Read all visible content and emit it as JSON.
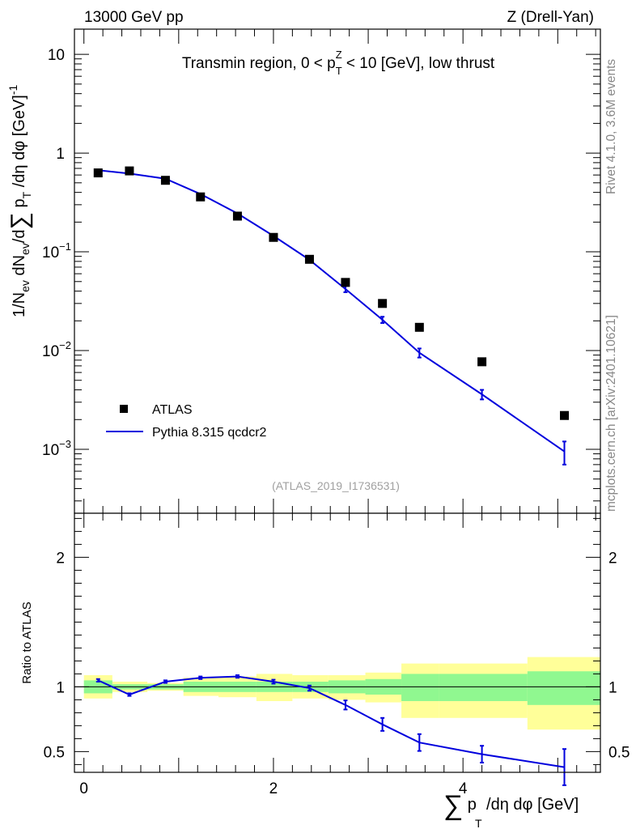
{
  "header": {
    "left": "13000 GeV pp",
    "right": "Z (Drell-Yan)"
  },
  "side_labels": {
    "rivet": "Rivet 4.1.0,  3.6M events",
    "site": "mcplots.cern.ch [arXiv:2401.10621]"
  },
  "colors": {
    "mc_line": "#0000dd",
    "data_marker": "#000000",
    "band_stat": "#90f890",
    "band_total": "#ffff99"
  },
  "chart_data": [
    {
      "type": "scatter",
      "panel": "main",
      "title": "Transmin region, 0 < p_T^Z < 10 [GeV], low thrust",
      "title_parts": {
        "prefix": "Transmin region, 0 < p",
        "sup": "Z",
        "sub": "T",
        "suffix": " < 10 [GeV], low thrust"
      },
      "yscale": "log",
      "xlim": [
        -0.1,
        5.45
      ],
      "ylim": [
        0.000225,
        18
      ],
      "ylabel": "1/N_ev dN_ev/d∑ p_T /dη dφ  [GeV]^-1",
      "y_tick_labels": [
        {
          "value": 10,
          "mantissa": "10",
          "exp": ""
        },
        {
          "value": 1,
          "mantissa": "1",
          "exp": ""
        },
        {
          "value": 0.1,
          "mantissa": "10",
          "exp": "−1"
        },
        {
          "value": 0.01,
          "mantissa": "10",
          "exp": "−2"
        },
        {
          "value": 0.001,
          "mantissa": "10",
          "exp": "−3"
        }
      ],
      "watermark": "(ATLAS_2019_I1736531)",
      "legend": {
        "position": "lower-left",
        "entries": [
          {
            "label": "ATLAS",
            "style": "marker"
          },
          {
            "label": "Pythia 8.315 qcdcr2",
            "style": "line"
          }
        ]
      },
      "series": [
        {
          "name": "ATLAS",
          "style": "marker",
          "x": [
            0.15,
            0.48,
            0.86,
            1.23,
            1.62,
            2.0,
            2.38,
            2.76,
            3.15,
            3.54,
            4.2,
            5.07
          ],
          "y": [
            0.63,
            0.66,
            0.53,
            0.36,
            0.23,
            0.14,
            0.084,
            0.049,
            0.03,
            0.0172,
            0.0077,
            0.0022
          ]
        },
        {
          "name": "Pythia 8.315 qcdcr2",
          "style": "line",
          "x": [
            0.15,
            0.48,
            0.86,
            1.23,
            1.62,
            2.0,
            2.38,
            2.76,
            3.15,
            3.54,
            4.2,
            5.07
          ],
          "y": [
            0.67,
            0.62,
            0.55,
            0.385,
            0.245,
            0.145,
            0.083,
            0.042,
            0.0205,
            0.0095,
            0.0036,
            0.00095
          ],
          "yerr": [
            0,
            0,
            0,
            0,
            0,
            0,
            0,
            0.003,
            0.0015,
            0.001,
            0.0004,
            0.00025
          ]
        }
      ]
    },
    {
      "type": "line",
      "panel": "ratio",
      "ylabel": "Ratio to ATLAS",
      "xlabel": "∑ p_T /dη dφ [GeV]",
      "xlim": [
        -0.1,
        5.45
      ],
      "ylim": [
        0.34,
        2.34
      ],
      "x_ticks": [
        0,
        2,
        4
      ],
      "y_ticks": [
        0.5,
        1,
        2
      ],
      "reference": 1,
      "bands": {
        "edges": [
          0.0,
          0.3,
          0.67,
          1.05,
          1.42,
          1.82,
          2.2,
          2.58,
          2.97,
          3.35,
          3.75,
          4.68,
          5.45
        ],
        "total_low": [
          0.91,
          0.96,
          0.97,
          0.93,
          0.92,
          0.89,
          0.91,
          0.9,
          0.88,
          0.76,
          0.76,
          0.67
        ],
        "total_high": [
          1.09,
          1.04,
          1.03,
          1.07,
          1.08,
          1.1,
          1.09,
          1.09,
          1.11,
          1.18,
          1.18,
          1.23
        ],
        "stat_low": [
          0.95,
          0.98,
          0.98,
          0.96,
          0.96,
          0.96,
          0.96,
          0.95,
          0.94,
          0.89,
          0.89,
          0.86
        ],
        "stat_high": [
          1.05,
          1.02,
          1.02,
          1.04,
          1.04,
          1.04,
          1.04,
          1.05,
          1.06,
          1.1,
          1.1,
          1.12
        ]
      },
      "series": [
        {
          "name": "Pythia 8.315 qcdcr2",
          "x": [
            0.15,
            0.48,
            0.86,
            1.23,
            1.62,
            2.0,
            2.38,
            2.76,
            3.15,
            3.54,
            4.2,
            5.07
          ],
          "y": [
            1.05,
            0.94,
            1.04,
            1.07,
            1.08,
            1.04,
            0.99,
            0.86,
            0.71,
            0.57,
            0.48,
            0.38
          ],
          "yerr": [
            0.01,
            0.01,
            0.01,
            0.01,
            0.01,
            0.015,
            0.02,
            0.035,
            0.05,
            0.065,
            0.065,
            0.14
          ]
        }
      ]
    }
  ]
}
